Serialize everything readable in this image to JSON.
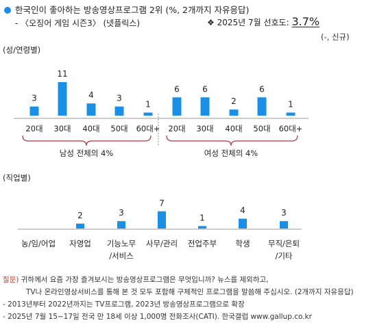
{
  "header": {
    "title": "한국인이 좋아하는 방송영상프로그램 2위",
    "title_note": "(%, 2개까지 자유응답)",
    "subtitle": "- 〈오징어 게임 시즌3〉 (넷플릭스)",
    "preference_label": "❖ 2025년 7월 선호도:",
    "preference_value": "3.7%",
    "change_note": "(-, 신규)"
  },
  "sections": {
    "gender_age": "(성/연령별)",
    "occupation": "(직업별)"
  },
  "chart_data": [
    {
      "type": "bar",
      "categories": [
        "20대",
        "30대",
        "40대",
        "50대",
        "60대+",
        "20대",
        "30대",
        "40대",
        "50대",
        "60대+"
      ],
      "values": [
        3,
        11,
        4,
        3,
        1,
        6,
        6,
        2,
        6,
        1
      ],
      "groups": [
        {
          "label": "남성 전체의 4%",
          "range": [
            0,
            4
          ]
        },
        {
          "label": "여성 전체의 4%",
          "range": [
            5,
            9
          ]
        }
      ],
      "title": "",
      "xlabel": "",
      "ylabel": "",
      "ylim": [
        0,
        11
      ],
      "color": "#1a8fe6"
    },
    {
      "type": "bar",
      "categories": [
        [
          "농/임/어업"
        ],
        [
          "자영업"
        ],
        [
          "기능노무",
          "/서비스"
        ],
        [
          "사무/관리"
        ],
        [
          "전업주부"
        ],
        [
          "학생"
        ],
        [
          "무직/은퇴",
          "/기타"
        ]
      ],
      "values": [
        null,
        2,
        3,
        7,
        1,
        4,
        3
      ],
      "title": "",
      "xlabel": "",
      "ylabel": "",
      "ylim": [
        0,
        7
      ],
      "color": "#1a8fe6"
    }
  ],
  "footer": {
    "question_label": "질문)",
    "question_line1": "귀하께서 요즘 가장 즐겨보시는 방송영상프로그램은 무엇입니까? 뉴스를 제외하고,",
    "question_line2": "TV나 온라인영상서비스를 통해 본 것 모두 포함해 구체적인 프로그램을 말씀해 주십시오. (2개까지 자유응답)",
    "note1": "- 2013년부터 2022년까지는 TV프로그램, 2023년 방송영상프로그램으로 확장",
    "note2": "- 2025년 7월 15~17일 전국 만 18세 이상 1,000명 전화조사(CATI). 한국갤럽 www.gallup.co.kr"
  }
}
